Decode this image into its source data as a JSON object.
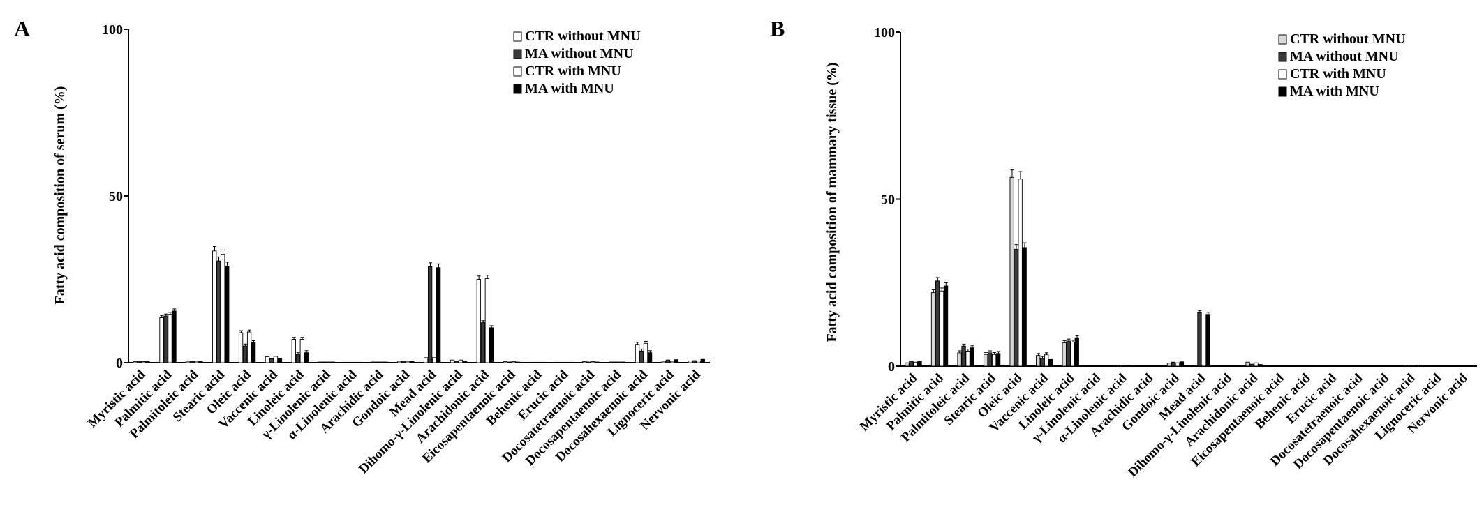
{
  "chart_data": [
    {
      "panel": "A",
      "type": "bar",
      "ylabel": "Fatty acid composition of serum (%)",
      "ylim": [
        0,
        100
      ],
      "yticks": [
        0,
        50,
        100
      ],
      "legend_position": "top-right",
      "categories": [
        "Myristic acid",
        "Palmitic acid",
        "Palmitoleic acid",
        "Stearic acid",
        "Oleic acid",
        "Vaccenic acid",
        "Linoleic acid",
        "γ-Linolenic acid",
        "α-Linolenic acid",
        "Arachidic acid",
        "Gondoic acid",
        "Mead acid",
        "Dihomo-γ-Linolenic acid",
        "Arachidonic acid",
        "Eicosapentaenoic acid",
        "Behenic acid",
        "Erucic acid",
        "Docosatetraenoic acid",
        "Docosapentaenoic acid",
        "Docosahexaenoic acid",
        "Lignoceric acid",
        "Nervonic acid"
      ],
      "series": [
        {
          "name": "CTR without MNU",
          "fill": "#ffffff",
          "values": [
            0.3,
            13.5,
            0.4,
            33.5,
            9.0,
            1.8,
            7.0,
            0.2,
            0.1,
            0.2,
            0.4,
            1.5,
            0.8,
            25.0,
            0.3,
            0.1,
            0.1,
            0.3,
            0.2,
            5.5,
            0.4,
            0.5
          ]
        },
        {
          "name": "MA without MNU",
          "fill": "#3a3a3a",
          "values": [
            0.3,
            14.0,
            0.3,
            30.5,
            5.0,
            1.2,
            2.5,
            0.2,
            0.1,
            0.2,
            0.4,
            28.8,
            0.4,
            12.0,
            0.2,
            0.1,
            0.1,
            0.2,
            0.2,
            3.5,
            0.8,
            0.6
          ]
        },
        {
          "name": "CTR with MNU",
          "fill": "#ffffff",
          "values": [
            0.3,
            14.5,
            0.4,
            32.5,
            9.2,
            1.9,
            7.0,
            0.2,
            0.1,
            0.2,
            0.4,
            1.5,
            0.8,
            25.2,
            0.3,
            0.1,
            0.1,
            0.3,
            0.2,
            5.8,
            0.4,
            0.5
          ]
        },
        {
          "name": "MA with MNU",
          "fill": "#000000",
          "values": [
            0.3,
            15.5,
            0.3,
            29.0,
            6.0,
            1.3,
            3.0,
            0.2,
            0.1,
            0.2,
            0.4,
            28.5,
            0.4,
            10.5,
            0.2,
            0.1,
            0.1,
            0.2,
            0.2,
            3.0,
            0.9,
            1.0
          ]
        }
      ]
    },
    {
      "panel": "B",
      "type": "bar",
      "ylabel": "Fatty acid composition of mammary tissue (%)",
      "ylim": [
        0,
        100
      ],
      "yticks": [
        0,
        50,
        100
      ],
      "legend_position": "top-right",
      "categories": [
        "Myristic acid",
        "Palmitic acid",
        "Palmitoleic acid",
        "Stearic acid",
        "Oleic acid",
        "Vaccenic acid",
        "Linoleic acid",
        "γ-Linolenic acid",
        "α-Linolenic acid",
        "Arachidic acid",
        "Gondoic acid",
        "Mead acid",
        "Dihomo-γ-Linolenic acid",
        "Arachidonic acid",
        "Eicosapentaenoic acid",
        "Behenic acid",
        "Erucic acid",
        "Docosatetraenoic acid",
        "Docosapentaenoic acid",
        "Docosahexaenoic acid",
        "Lignoceric acid",
        "Nervonic acid"
      ],
      "series": [
        {
          "name": "CTR without MNU",
          "fill": "#d8d8d8",
          "values": [
            1.0,
            22.0,
            4.0,
            3.5,
            56.5,
            3.2,
            7.0,
            0.1,
            0.2,
            0.1,
            0.9,
            0.2,
            0.1,
            1.2,
            0.1,
            0.1,
            0.1,
            0.1,
            0.1,
            0.2,
            0.1,
            0.1
          ]
        },
        {
          "name": "MA without MNU",
          "fill": "#3a3a3a",
          "values": [
            1.5,
            25.5,
            6.0,
            4.0,
            35.0,
            2.3,
            7.5,
            0.1,
            0.3,
            0.1,
            1.2,
            16.0,
            0.1,
            0.6,
            0.1,
            0.1,
            0.1,
            0.1,
            0.1,
            0.3,
            0.1,
            0.1
          ]
        },
        {
          "name": "CTR with MNU",
          "fill": "#ffffff",
          "values": [
            1.2,
            22.5,
            4.5,
            3.5,
            56.0,
            3.4,
            7.2,
            0.1,
            0.2,
            0.1,
            1.0,
            0.3,
            0.1,
            1.0,
            0.1,
            0.1,
            0.1,
            0.1,
            0.1,
            0.2,
            0.1,
            0.1
          ]
        },
        {
          "name": "MA with MNU",
          "fill": "#000000",
          "values": [
            1.5,
            24.0,
            5.5,
            3.8,
            35.5,
            2.0,
            8.5,
            0.1,
            0.3,
            0.1,
            1.3,
            15.5,
            0.1,
            0.5,
            0.1,
            0.1,
            0.1,
            0.1,
            0.1,
            0.3,
            0.1,
            0.1
          ]
        }
      ]
    }
  ]
}
